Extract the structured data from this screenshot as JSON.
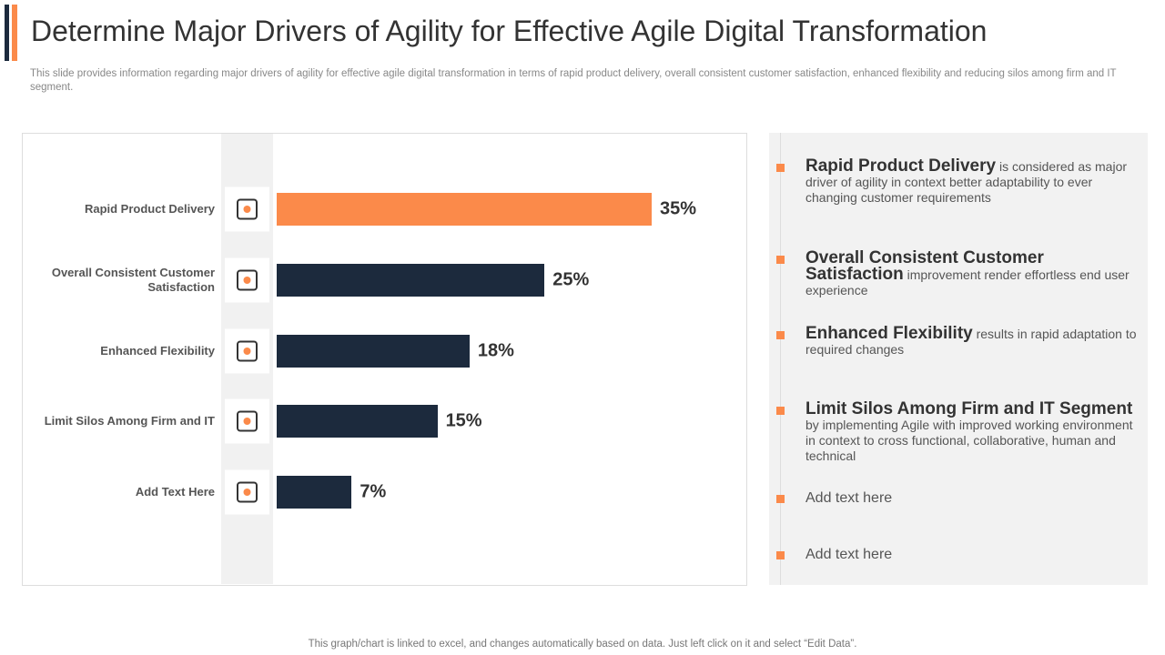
{
  "title": "Determine Major Drivers of Agility for Effective Agile Digital Transformation",
  "subtitle": "This slide provides information regarding major drivers of agility for effective agile digital transformation in terms of rapid product delivery, overall consistent customer satisfaction, enhanced flexibility and reducing silos among firm and IT segment.",
  "chart_data": {
    "type": "bar",
    "orientation": "horizontal",
    "categories": [
      "Rapid Product Delivery",
      "Overall Consistent Customer Satisfaction",
      "Enhanced Flexibility",
      "Limit Silos Among Firm and IT",
      "Add Text Here"
    ],
    "values": [
      35,
      25,
      18,
      15,
      7
    ],
    "value_labels": [
      "35%",
      "25%",
      "18%",
      "15%",
      "7%"
    ],
    "colors": [
      "#fb8a4a",
      "#1c2a3d",
      "#1c2a3d",
      "#1c2a3d",
      "#1c2a3d"
    ]
  },
  "points": [
    {
      "heading": "Rapid Product Delivery",
      "text": "is considered as major driver of agility in context better adaptability to ever changing customer requirements"
    },
    {
      "heading": "Overall Consistent Customer Satisfaction",
      "text": "improvement render effortless end user experience"
    },
    {
      "heading": "Enhanced Flexibility",
      "text": "results in rapid adaptation to required changes"
    },
    {
      "heading": "Limit Silos Among Firm and IT Segment",
      "text": "by implementing Agile with improved working environment in context to cross functional, collaborative, human and technical"
    },
    {
      "text": "Add text here"
    },
    {
      "text": "Add text here"
    }
  ],
  "footer": "This graph/chart is linked to excel, and changes automatically based on data. Just left click on it and select “Edit Data”."
}
